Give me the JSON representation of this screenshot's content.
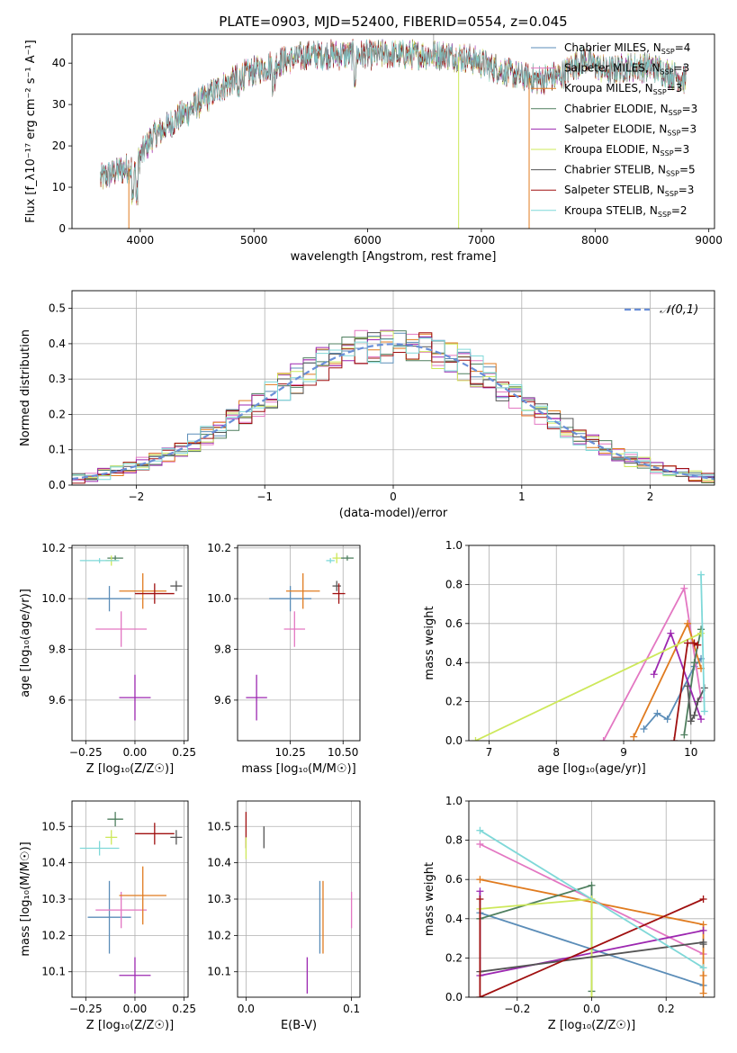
{
  "title": "PLATE=0903, MJD=52400, FIBERID=0554, z=0.045",
  "colors": {
    "chabrier_miles": "#5b8db8",
    "salpeter_miles": "#e377c2",
    "kroupa_miles": "#e07b1f",
    "chabrier_elodie": "#4f7f5f",
    "salpeter_elodie": "#9c27b0",
    "kroupa_elodie": "#cde85a",
    "chabrier_stelib": "#555555",
    "salpeter_stelib": "#a01010",
    "kroupa_stelib": "#7fd8d8",
    "normal_curve": "#6a8fd8",
    "grid": "#b0b0b0"
  },
  "chart_data": [
    {
      "id": "spectrum",
      "type": "line",
      "xlabel": "wavelength [Angstrom, rest frame]",
      "ylabel": "Flux [f_λ10⁻¹⁷ erg cm⁻² s⁻¹ A⁻¹]",
      "xlim": [
        3400,
        9050
      ],
      "ylim": [
        0,
        47
      ],
      "xticks": [
        4000,
        5000,
        6000,
        7000,
        8000,
        9000
      ],
      "yticks": [
        0,
        10,
        20,
        30,
        40
      ],
      "legend_position": "top-right",
      "legend": [
        {
          "name": "Chabrier MILES, N_SSP=4",
          "color_key": "chabrier_miles"
        },
        {
          "name": "Salpeter MILES, N_SSP=3",
          "color_key": "salpeter_miles"
        },
        {
          "name": "Kroupa MILES, N_SSP=3",
          "color_key": "kroupa_miles"
        },
        {
          "name": "Chabrier ELODIE, N_SSP=3",
          "color_key": "chabrier_elodie"
        },
        {
          "name": "Salpeter ELODIE, N_SSP=3",
          "color_key": "salpeter_elodie"
        },
        {
          "name": "Kroupa ELODIE, N_SSP=3",
          "color_key": "kroupa_elodie"
        },
        {
          "name": "Chabrier STELIB, N_SSP=5",
          "color_key": "chabrier_stelib"
        },
        {
          "name": "Salpeter STELIB, N_SSP=3",
          "color_key": "salpeter_stelib"
        },
        {
          "name": "Kroupa STELIB, N_SSP=2",
          "color_key": "kroupa_stelib"
        }
      ],
      "envelope": {
        "x": [
          3650,
          3800,
          3950,
          4100,
          4300,
          4500,
          4700,
          4900,
          5100,
          5300,
          5500,
          5700,
          5900,
          6100,
          6300,
          6500,
          6700,
          6900,
          7100,
          7300,
          7500,
          7700,
          7900,
          8100,
          8300,
          8500,
          8700,
          8800
        ],
        "y": [
          12,
          14,
          15,
          22,
          26,
          30,
          34,
          37,
          39,
          41,
          42,
          42,
          42,
          42,
          42,
          42,
          42,
          41,
          39,
          37,
          36,
          37,
          41,
          38,
          39,
          39,
          37,
          36
        ]
      },
      "drops": [
        {
          "x": 3900,
          "y": 0,
          "color_key": "kroupa_miles"
        },
        {
          "x": 6800,
          "y": 0,
          "color_key": "kroupa_elodie"
        },
        {
          "x": 7420,
          "y": 0,
          "color_key": "kroupa_miles"
        }
      ]
    },
    {
      "id": "residuals",
      "type": "histogram",
      "xlabel": "(data-model)/error",
      "ylabel": "Normed distribution",
      "xlim": [
        -2.5,
        2.5
      ],
      "ylim": [
        0,
        0.55
      ],
      "xticks": [
        -2,
        -1,
        0,
        1,
        2
      ],
      "yticks": [
        0.0,
        0.1,
        0.2,
        0.3,
        0.4,
        0.5
      ],
      "grid": true,
      "legend_position": "top-right",
      "legend": [
        {
          "name": "𝒩(0,1)",
          "color_key": "normal_curve"
        }
      ],
      "bin_width": 0.1
    },
    {
      "id": "age_vs_Z",
      "type": "errorbar",
      "xlabel": "Z [log₁₀(Z/Z☉)]",
      "ylabel": "age  [log₁₀(age/yr)]",
      "xlim": [
        -0.32,
        0.27
      ],
      "ylim": [
        9.44,
        10.21
      ],
      "xticks": [
        -0.25,
        0.0,
        0.25
      ],
      "xticklabels": [
        "−0.25",
        "0.00",
        "0.25"
      ],
      "yticks": [
        9.6,
        9.8,
        10.0,
        10.2
      ],
      "grid": true,
      "points": [
        {
          "color_key": "chabrier_miles",
          "x": -0.13,
          "xerr": 0.11,
          "y": 10.0,
          "yerr": 0.05
        },
        {
          "color_key": "salpeter_miles",
          "x": -0.07,
          "xerr": 0.13,
          "y": 9.88,
          "yerr": 0.07
        },
        {
          "color_key": "kroupa_miles",
          "x": 0.04,
          "xerr": 0.12,
          "y": 10.03,
          "yerr": 0.07
        },
        {
          "color_key": "chabrier_elodie",
          "x": -0.1,
          "xerr": 0.04,
          "y": 10.16,
          "yerr": 0.01
        },
        {
          "color_key": "salpeter_elodie",
          "x": 0.0,
          "xerr": 0.08,
          "y": 9.61,
          "yerr": 0.09
        },
        {
          "color_key": "kroupa_elodie",
          "x": -0.12,
          "xerr": 0.03,
          "y": 10.15,
          "yerr": 0.02
        },
        {
          "color_key": "chabrier_stelib",
          "x": 0.21,
          "xerr": 0.03,
          "y": 10.05,
          "yerr": 0.02
        },
        {
          "color_key": "salpeter_stelib",
          "x": 0.1,
          "xerr": 0.1,
          "y": 10.02,
          "yerr": 0.04
        },
        {
          "color_key": "kroupa_stelib",
          "x": -0.18,
          "xerr": 0.1,
          "y": 10.15,
          "yerr": 0.01
        }
      ]
    },
    {
      "id": "age_vs_mass",
      "type": "errorbar",
      "xlabel": "mass [log₁₀(M/M☉)]",
      "ylabel": "",
      "xlim": [
        10.0,
        10.58
      ],
      "ylim": [
        9.44,
        10.21
      ],
      "xticks": [
        10.25,
        10.5
      ],
      "xticklabels": [
        "10.25",
        "10.50"
      ],
      "yticks": [
        9.6,
        9.8,
        10.0,
        10.2
      ],
      "grid": true,
      "points": [
        {
          "color_key": "chabrier_miles",
          "x": 10.25,
          "xerr": 0.1,
          "y": 10.0,
          "yerr": 0.05
        },
        {
          "color_key": "salpeter_miles",
          "x": 10.27,
          "xerr": 0.05,
          "y": 9.88,
          "yerr": 0.07
        },
        {
          "color_key": "kroupa_miles",
          "x": 10.31,
          "xerr": 0.08,
          "y": 10.03,
          "yerr": 0.07
        },
        {
          "color_key": "chabrier_elodie",
          "x": 10.52,
          "xerr": 0.03,
          "y": 10.16,
          "yerr": 0.01
        },
        {
          "color_key": "salpeter_elodie",
          "x": 10.09,
          "xerr": 0.05,
          "y": 9.61,
          "yerr": 0.09
        },
        {
          "color_key": "kroupa_elodie",
          "x": 10.47,
          "xerr": 0.02,
          "y": 10.16,
          "yerr": 0.02
        },
        {
          "color_key": "chabrier_stelib",
          "x": 10.47,
          "xerr": 0.02,
          "y": 10.05,
          "yerr": 0.02
        },
        {
          "color_key": "salpeter_stelib",
          "x": 10.48,
          "xerr": 0.03,
          "y": 10.02,
          "yerr": 0.04
        },
        {
          "color_key": "kroupa_stelib",
          "x": 10.44,
          "xerr": 0.02,
          "y": 10.15,
          "yerr": 0.01
        }
      ]
    },
    {
      "id": "weight_vs_age",
      "type": "line",
      "xlabel": "age  [log₁₀(age/yr)]",
      "ylabel": "mass weight",
      "xlim": [
        6.7,
        10.35
      ],
      "ylim": [
        0,
        1
      ],
      "xticks": [
        7,
        8,
        9,
        10
      ],
      "yticks": [
        0.0,
        0.2,
        0.4,
        0.6,
        0.8,
        1.0
      ],
      "grid": true,
      "series": [
        {
          "color_key": "chabrier_miles",
          "x": [
            9.3,
            9.5,
            9.65,
            10.05,
            10.15
          ],
          "y": [
            0.06,
            0.14,
            0.11,
            0.38,
            0.42
          ]
        },
        {
          "color_key": "salpeter_miles",
          "x": [
            8.7,
            9.9,
            10.15
          ],
          "y": [
            0.0,
            0.78,
            0.22
          ]
        },
        {
          "color_key": "kroupa_miles",
          "x": [
            9.15,
            9.95,
            10.15
          ],
          "y": [
            0.02,
            0.6,
            0.37
          ]
        },
        {
          "color_key": "chabrier_elodie",
          "x": [
            9.9,
            10.05,
            10.15
          ],
          "y": [
            0.03,
            0.4,
            0.57
          ]
        },
        {
          "color_key": "salpeter_elodie",
          "x": [
            9.45,
            9.7,
            10.15
          ],
          "y": [
            0.34,
            0.55,
            0.11
          ]
        },
        {
          "color_key": "kroupa_elodie",
          "x": [
            6.8,
            10.15
          ],
          "y": [
            0.0,
            0.55
          ]
        },
        {
          "color_key": "chabrier_stelib",
          "x": [
            9.95,
            10.0,
            10.05,
            10.1,
            10.2
          ],
          "y": [
            0.28,
            0.1,
            0.13,
            0.2,
            0.27
          ]
        },
        {
          "color_key": "salpeter_stelib",
          "x": [
            9.75,
            9.95,
            10.05,
            10.1
          ],
          "y": [
            0.0,
            0.5,
            0.5,
            0.49
          ]
        },
        {
          "color_key": "kroupa_stelib",
          "x": [
            10.15,
            10.2
          ],
          "y": [
            0.85,
            0.15
          ]
        }
      ]
    },
    {
      "id": "mass_vs_Z",
      "type": "errorbar",
      "xlabel": "Z [log₁₀(Z/Z☉)]",
      "ylabel": "mass [log₁₀(M/M☉)]",
      "xlim": [
        -0.32,
        0.27
      ],
      "ylim": [
        10.03,
        10.57
      ],
      "xticks": [
        -0.25,
        0.0,
        0.25
      ],
      "xticklabels": [
        "−0.25",
        "0.00",
        "0.25"
      ],
      "yticks": [
        10.1,
        10.2,
        10.3,
        10.4,
        10.5
      ],
      "grid": true,
      "points": [
        {
          "color_key": "chabrier_miles",
          "x": -0.13,
          "xerr": 0.11,
          "y": 10.25,
          "yerr": 0.1
        },
        {
          "color_key": "salpeter_miles",
          "x": -0.07,
          "xerr": 0.13,
          "y": 10.27,
          "yerr": 0.05
        },
        {
          "color_key": "kroupa_miles",
          "x": 0.04,
          "xerr": 0.12,
          "y": 10.31,
          "yerr": 0.08
        },
        {
          "color_key": "chabrier_elodie",
          "x": -0.1,
          "xerr": 0.04,
          "y": 10.52,
          "yerr": 0.02
        },
        {
          "color_key": "salpeter_elodie",
          "x": 0.0,
          "xerr": 0.08,
          "y": 10.09,
          "yerr": 0.05
        },
        {
          "color_key": "kroupa_elodie",
          "x": -0.12,
          "xerr": 0.03,
          "y": 10.47,
          "yerr": 0.02
        },
        {
          "color_key": "chabrier_stelib",
          "x": 0.21,
          "xerr": 0.03,
          "y": 10.47,
          "yerr": 0.02
        },
        {
          "color_key": "salpeter_stelib",
          "x": 0.1,
          "xerr": 0.1,
          "y": 10.48,
          "yerr": 0.03
        },
        {
          "color_key": "kroupa_stelib",
          "x": -0.18,
          "xerr": 0.1,
          "y": 10.44,
          "yerr": 0.02
        }
      ]
    },
    {
      "id": "mass_vs_ebv",
      "type": "errorbar",
      "xlabel": "E(B-V)",
      "ylabel": "",
      "xlim": [
        -0.008,
        0.108
      ],
      "ylim": [
        10.03,
        10.57
      ],
      "xticks": [
        0.0,
        0.1
      ],
      "xticklabels": [
        "0.0",
        "0.1"
      ],
      "yticks": [
        10.1,
        10.2,
        10.3,
        10.4,
        10.5
      ],
      "grid": true,
      "points": [
        {
          "color_key": "chabrier_miles",
          "x": 0.07,
          "xerr": 0,
          "y": 10.25,
          "yerr": 0.1
        },
        {
          "color_key": "salpeter_miles",
          "x": 0.1,
          "xerr": 0,
          "y": 10.27,
          "yerr": 0.05
        },
        {
          "color_key": "kroupa_miles",
          "x": 0.073,
          "xerr": 0,
          "y": 10.25,
          "yerr": 0.1
        },
        {
          "color_key": "salpeter_elodie",
          "x": 0.058,
          "xerr": 0,
          "y": 10.09,
          "yerr": 0.05
        },
        {
          "color_key": "chabrier_stelib",
          "x": 0.017,
          "xerr": 0,
          "y": 10.47,
          "yerr": 0.03
        },
        {
          "color_key": "salpeter_stelib",
          "x": 0.0,
          "xerr": 0,
          "y": 10.49,
          "yerr": 0.05
        },
        {
          "color_key": "kroupa_elodie",
          "x": 0.0,
          "xerr": 0,
          "y": 10.44,
          "yerr": 0.03
        }
      ]
    },
    {
      "id": "weight_vs_Z",
      "type": "line",
      "xlabel": "Z [log₁₀(Z/Z☉)]",
      "ylabel": "mass weight",
      "xlim": [
        -0.33,
        0.33
      ],
      "ylim": [
        0,
        1
      ],
      "xticks": [
        -0.2,
        0.0,
        0.2
      ],
      "xticklabels": [
        "−0.2",
        "0.0",
        "0.2"
      ],
      "yticks": [
        0.0,
        0.2,
        0.4,
        0.6,
        0.8,
        1.0
      ],
      "grid": true,
      "series": [
        {
          "color_key": "chabrier_miles",
          "x": [
            -0.3,
            0.3
          ],
          "y": [
            0.43,
            0.06
          ]
        },
        {
          "color_key": "salpeter_miles",
          "x": [
            -0.3,
            0.3
          ],
          "y": [
            0.78,
            0.22
          ]
        },
        {
          "color_key": "kroupa_miles",
          "x": [
            -0.3,
            0.3,
            0.3,
            0.3
          ],
          "y": [
            0.6,
            0.37,
            0.11,
            0.02
          ]
        },
        {
          "color_key": "chabrier_elodie",
          "x": [
            -0.3,
            0.0,
            0.0
          ],
          "y": [
            0.4,
            0.57,
            0.03
          ]
        },
        {
          "color_key": "salpeter_elodie",
          "x": [
            -0.3,
            -0.3,
            0.3
          ],
          "y": [
            0.54,
            0.11,
            0.34
          ]
        },
        {
          "color_key": "kroupa_elodie",
          "x": [
            -0.3,
            0.0,
            0.0
          ],
          "y": [
            0.45,
            0.5,
            0.0
          ]
        },
        {
          "color_key": "chabrier_stelib",
          "x": [
            -0.3,
            0.3,
            0.3
          ],
          "y": [
            0.13,
            0.28,
            0.27
          ]
        },
        {
          "color_key": "salpeter_stelib",
          "x": [
            -0.3,
            -0.3,
            0.3
          ],
          "y": [
            0.5,
            0.0,
            0.5
          ]
        },
        {
          "color_key": "kroupa_stelib",
          "x": [
            -0.3,
            0.3
          ],
          "y": [
            0.85,
            0.15
          ]
        }
      ]
    }
  ]
}
